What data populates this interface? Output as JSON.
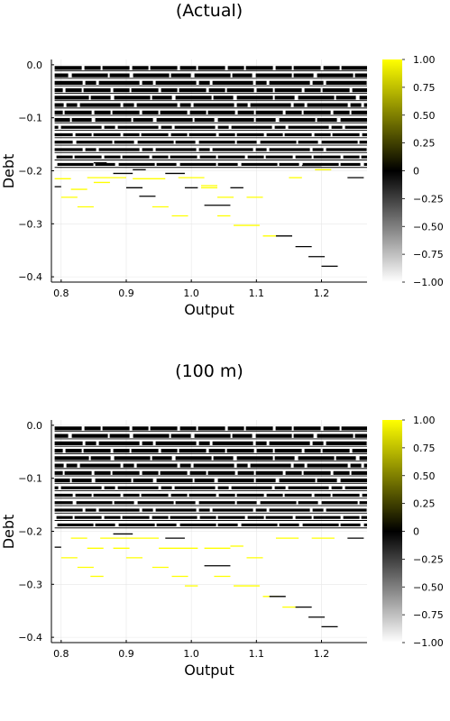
{
  "chart_data": [
    {
      "type": "heatmap",
      "title": "(Actual)",
      "xlabel": "Output",
      "ylabel": "Debt",
      "xlim": [
        0.785,
        1.27
      ],
      "ylim": [
        -0.41,
        0.01
      ],
      "xticks": [
        0.8,
        0.9,
        1.0,
        1.1,
        1.2
      ],
      "xtick_labels": [
        "0.8",
        "0.9",
        "1.0",
        "1.1",
        "1.2"
      ],
      "yticks": [
        0.0,
        -0.1,
        -0.2,
        -0.3,
        -0.4
      ],
      "ytick_labels": [
        "0.0",
        "−0.1",
        "−0.2",
        "−0.3",
        "−0.4"
      ],
      "colorbar": {
        "range": [
          -1,
          1
        ],
        "ticks": [
          1,
          0.75,
          0.5,
          0.25,
          0,
          -0.25,
          -0.5,
          -0.75,
          -1
        ],
        "tick_labels": [
          "1.00",
          "0.75",
          "0.50",
          "0.25",
          "0",
          "−0.25",
          "−0.50",
          "−0.75",
          "−1.00"
        ],
        "colors": [
          "#ffffff",
          "#000000",
          "#ffff00"
        ]
      },
      "grid": true,
      "bands": [
        {
          "y": -0.006,
          "value": 0
        },
        {
          "y": -0.02,
          "value": 0
        },
        {
          "y": -0.034,
          "value": 0
        },
        {
          "y": -0.048,
          "value": 0
        },
        {
          "y": -0.062,
          "value": 0
        },
        {
          "y": -0.076,
          "value": 0
        },
        {
          "y": -0.09,
          "value": 0
        },
        {
          "y": -0.104,
          "value": 0
        },
        {
          "y": -0.118,
          "value": 0
        },
        {
          "y": -0.132,
          "value": 0
        },
        {
          "y": -0.146,
          "value": 0
        },
        {
          "y": -0.16,
          "value": 0
        },
        {
          "y": -0.174,
          "value": 0
        },
        {
          "y": -0.188,
          "value": 0
        }
      ],
      "segments": [
        {
          "x0": 0.79,
          "x1": 0.815,
          "y": -0.215,
          "value": 1
        },
        {
          "x0": 0.815,
          "x1": 0.84,
          "y": -0.235,
          "value": 1
        },
        {
          "x0": 0.8,
          "x1": 0.825,
          "y": -0.25,
          "value": 1
        },
        {
          "x0": 0.825,
          "x1": 0.85,
          "y": -0.268,
          "value": 1
        },
        {
          "x0": 0.84,
          "x1": 0.9,
          "y": -0.213,
          "value": 1
        },
        {
          "x0": 0.85,
          "x1": 0.875,
          "y": -0.222,
          "value": 1
        },
        {
          "x0": 0.91,
          "x1": 0.96,
          "y": -0.215,
          "value": 1
        },
        {
          "x0": 0.94,
          "x1": 0.965,
          "y": -0.268,
          "value": 1
        },
        {
          "x0": 0.97,
          "x1": 0.995,
          "y": -0.285,
          "value": 1
        },
        {
          "x0": 0.98,
          "x1": 1.02,
          "y": -0.213,
          "value": 1
        },
        {
          "x0": 1.015,
          "x1": 1.04,
          "y": -0.228,
          "value": 1
        },
        {
          "x0": 1.015,
          "x1": 1.04,
          "y": -0.232,
          "value": 1
        },
        {
          "x0": 1.04,
          "x1": 1.065,
          "y": -0.25,
          "value": 1
        },
        {
          "x0": 1.04,
          "x1": 1.06,
          "y": -0.285,
          "value": 1
        },
        {
          "x0": 1.065,
          "x1": 1.105,
          "y": -0.303,
          "value": 1
        },
        {
          "x0": 1.085,
          "x1": 1.11,
          "y": -0.25,
          "value": 1
        },
        {
          "x0": 1.11,
          "x1": 1.135,
          "y": -0.323,
          "value": 1
        },
        {
          "x0": 1.15,
          "x1": 1.17,
          "y": -0.213,
          "value": 1
        },
        {
          "x0": 1.19,
          "x1": 1.215,
          "y": -0.198,
          "value": 1
        },
        {
          "x0": 0.79,
          "x1": 0.8,
          "y": -0.23,
          "value": 0
        },
        {
          "x0": 0.85,
          "x1": 0.87,
          "y": -0.185,
          "value": 0
        },
        {
          "x0": 0.88,
          "x1": 0.91,
          "y": -0.205,
          "value": 0
        },
        {
          "x0": 0.9,
          "x1": 0.925,
          "y": -0.232,
          "value": 0
        },
        {
          "x0": 0.91,
          "x1": 0.93,
          "y": -0.198,
          "value": 0
        },
        {
          "x0": 0.92,
          "x1": 0.945,
          "y": -0.248,
          "value": 0
        },
        {
          "x0": 0.96,
          "x1": 0.99,
          "y": -0.205,
          "value": 0
        },
        {
          "x0": 0.99,
          "x1": 1.01,
          "y": -0.232,
          "value": 0
        },
        {
          "x0": 1.02,
          "x1": 1.06,
          "y": -0.265,
          "value": 0
        },
        {
          "x0": 1.06,
          "x1": 1.08,
          "y": -0.232,
          "value": 0
        },
        {
          "x0": 1.13,
          "x1": 1.155,
          "y": -0.323,
          "value": 0
        },
        {
          "x0": 1.16,
          "x1": 1.185,
          "y": -0.343,
          "value": 0
        },
        {
          "x0": 1.18,
          "x1": 1.205,
          "y": -0.362,
          "value": 0
        },
        {
          "x0": 1.2,
          "x1": 1.225,
          "y": -0.38,
          "value": 0
        },
        {
          "x0": 1.17,
          "x1": 1.2,
          "y": -0.19,
          "value": 0
        },
        {
          "x0": 1.24,
          "x1": 1.265,
          "y": -0.213,
          "value": 0
        }
      ]
    },
    {
      "type": "heatmap",
      "title": "(100 m)",
      "xlabel": "Output",
      "ylabel": "Debt",
      "xlim": [
        0.785,
        1.27
      ],
      "ylim": [
        -0.41,
        0.01
      ],
      "xticks": [
        0.8,
        0.9,
        1.0,
        1.1,
        1.2
      ],
      "xtick_labels": [
        "0.8",
        "0.9",
        "1.0",
        "1.1",
        "1.2"
      ],
      "yticks": [
        0.0,
        -0.1,
        -0.2,
        -0.3,
        -0.4
      ],
      "ytick_labels": [
        "0.0",
        "−0.1",
        "−0.2",
        "−0.3",
        "−0.4"
      ],
      "colorbar": {
        "range": [
          -1,
          1
        ],
        "ticks": [
          1,
          0.75,
          0.5,
          0.25,
          0,
          -0.25,
          -0.5,
          -0.75,
          -1
        ],
        "tick_labels": [
          "1.00",
          "0.75",
          "0.50",
          "0.25",
          "0",
          "−0.25",
          "−0.50",
          "−0.75",
          "−1.00"
        ],
        "colors": [
          "#ffffff",
          "#000000",
          "#ffff00"
        ]
      },
      "grid": true,
      "bands": [
        {
          "y": -0.006,
          "value": 0
        },
        {
          "y": -0.02,
          "value": 0
        },
        {
          "y": -0.034,
          "value": 0
        },
        {
          "y": -0.048,
          "value": 0
        },
        {
          "y": -0.062,
          "value": 0
        },
        {
          "y": -0.076,
          "value": 0
        },
        {
          "y": -0.09,
          "value": 0
        },
        {
          "y": -0.104,
          "value": 0
        },
        {
          "y": -0.118,
          "value": 0
        },
        {
          "y": -0.132,
          "value": 0
        },
        {
          "y": -0.146,
          "value": 0
        },
        {
          "y": -0.16,
          "value": 0
        },
        {
          "y": -0.174,
          "value": 0
        },
        {
          "y": -0.188,
          "value": 0
        }
      ],
      "segments": [
        {
          "x0": 0.815,
          "x1": 0.84,
          "y": -0.213,
          "value": 1
        },
        {
          "x0": 0.84,
          "x1": 0.865,
          "y": -0.232,
          "value": 1
        },
        {
          "x0": 0.8,
          "x1": 0.825,
          "y": -0.25,
          "value": 1
        },
        {
          "x0": 0.825,
          "x1": 0.85,
          "y": -0.268,
          "value": 1
        },
        {
          "x0": 0.845,
          "x1": 0.865,
          "y": -0.285,
          "value": 1
        },
        {
          "x0": 0.86,
          "x1": 0.9,
          "y": -0.213,
          "value": 1
        },
        {
          "x0": 0.88,
          "x1": 0.905,
          "y": -0.232,
          "value": 1
        },
        {
          "x0": 0.9,
          "x1": 0.95,
          "y": -0.213,
          "value": 1
        },
        {
          "x0": 0.9,
          "x1": 0.925,
          "y": -0.25,
          "value": 1
        },
        {
          "x0": 0.94,
          "x1": 0.965,
          "y": -0.268,
          "value": 1
        },
        {
          "x0": 0.95,
          "x1": 1.01,
          "y": -0.232,
          "value": 1
        },
        {
          "x0": 0.97,
          "x1": 0.995,
          "y": -0.285,
          "value": 1
        },
        {
          "x0": 0.99,
          "x1": 1.01,
          "y": -0.303,
          "value": 1
        },
        {
          "x0": 1.02,
          "x1": 1.06,
          "y": -0.232,
          "value": 1
        },
        {
          "x0": 1.035,
          "x1": 1.06,
          "y": -0.285,
          "value": 1
        },
        {
          "x0": 1.06,
          "x1": 1.08,
          "y": -0.228,
          "value": 1
        },
        {
          "x0": 1.065,
          "x1": 1.105,
          "y": -0.303,
          "value": 1
        },
        {
          "x0": 1.085,
          "x1": 1.11,
          "y": -0.25,
          "value": 1
        },
        {
          "x0": 1.11,
          "x1": 1.135,
          "y": -0.323,
          "value": 1
        },
        {
          "x0": 1.13,
          "x1": 1.165,
          "y": -0.213,
          "value": 1
        },
        {
          "x0": 1.14,
          "x1": 1.165,
          "y": -0.343,
          "value": 1
        },
        {
          "x0": 1.185,
          "x1": 1.22,
          "y": -0.213,
          "value": 1
        },
        {
          "x0": 0.79,
          "x1": 0.8,
          "y": -0.23,
          "value": 0
        },
        {
          "x0": 0.88,
          "x1": 0.91,
          "y": -0.205,
          "value": 0
        },
        {
          "x0": 0.96,
          "x1": 0.99,
          "y": -0.213,
          "value": 0
        },
        {
          "x0": 1.02,
          "x1": 1.06,
          "y": -0.265,
          "value": 0
        },
        {
          "x0": 1.12,
          "x1": 1.145,
          "y": -0.323,
          "value": 0
        },
        {
          "x0": 1.16,
          "x1": 1.185,
          "y": -0.343,
          "value": 0
        },
        {
          "x0": 1.18,
          "x1": 1.205,
          "y": -0.362,
          "value": 0
        },
        {
          "x0": 1.2,
          "x1": 1.225,
          "y": -0.38,
          "value": 0
        },
        {
          "x0": 1.24,
          "x1": 1.265,
          "y": -0.213,
          "value": 0
        }
      ]
    }
  ]
}
